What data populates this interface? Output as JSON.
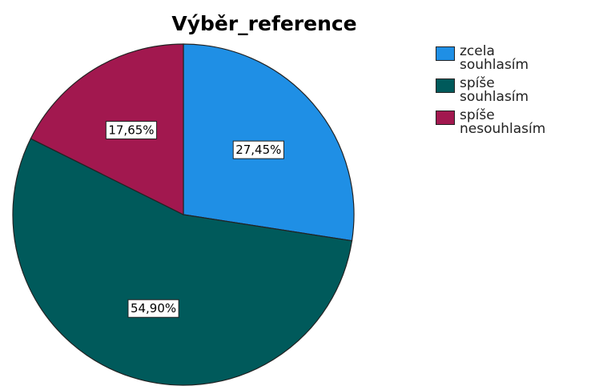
{
  "chart_data": {
    "type": "pie",
    "title": "Výběr_reference",
    "categories": [
      "zcela souhlasím",
      "spíše souhlasím",
      "spíše nesouhlasím"
    ],
    "values": [
      27.45,
      54.9,
      17.65
    ],
    "value_labels": [
      "27,45%",
      "54,90%",
      "17,65%"
    ],
    "colors": [
      "#1f8fe5",
      "#005a5b",
      "#a2184f"
    ],
    "legend": "right"
  }
}
